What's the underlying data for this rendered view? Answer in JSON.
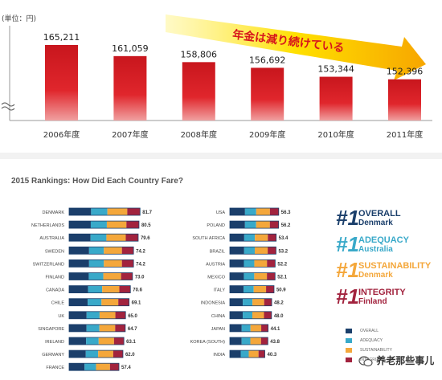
{
  "chart_data": [
    {
      "type": "bar",
      "unit_label": "(単位：円)",
      "categories": [
        "2006年度",
        "2007年度",
        "2008年度",
        "2009年度",
        "2010年度",
        "2011年度"
      ],
      "values": [
        165211,
        161059,
        158806,
        156692,
        153344,
        152396
      ],
      "value_labels": [
        "165,211",
        "161,059",
        "158,806",
        "156,692",
        "153,344",
        "152,396"
      ],
      "annotation": "年金は減り続けている",
      "axis_break": true,
      "colors": {
        "bar_top": "#c8161d",
        "bar_bottom": "#f0a0a0",
        "arrow_start": "#fff200",
        "arrow_end": "#f7a600"
      }
    },
    {
      "type": "bar",
      "orientation": "horizontal-stacked",
      "title": "2015 Rankings: How Did Each Country Fare?",
      "series": [
        {
          "name": "OVERALL",
          "color": "#1b3f6b"
        },
        {
          "name": "ADEQUACY",
          "color": "#39a9c9"
        },
        {
          "name": "SUSTAINABILITY",
          "color": "#f4a73b"
        },
        {
          "name": "INTEGRITY",
          "color": "#a2233e"
        }
      ],
      "left_column": [
        {
          "country": "DENMARK",
          "value": 81.7
        },
        {
          "country": "NETHERLANDS",
          "value": 80.5
        },
        {
          "country": "AUSTRALIA",
          "value": 79.6
        },
        {
          "country": "SWEDEN",
          "value": 74.2
        },
        {
          "country": "SWITZERLAND",
          "value": 74.2
        },
        {
          "country": "FINLAND",
          "value": 73.0
        },
        {
          "country": "CANADA",
          "value": 70.6
        },
        {
          "country": "CHILE",
          "value": 69.1
        },
        {
          "country": "UK",
          "value": 65.0
        },
        {
          "country": "SINGAPORE",
          "value": 64.7
        },
        {
          "country": "IRELAND",
          "value": 63.1
        },
        {
          "country": "GERMANY",
          "value": 62.0
        },
        {
          "country": "FRANCE",
          "value": 57.4
        }
      ],
      "right_column": [
        {
          "country": "USA",
          "value": 56.3
        },
        {
          "country": "POLAND",
          "value": 56.2
        },
        {
          "country": "SOUTH AFRICA",
          "value": 53.4
        },
        {
          "country": "BRAZIL",
          "value": 53.2
        },
        {
          "country": "AUSTRIA",
          "value": 52.2
        },
        {
          "country": "MEXICO",
          "value": 52.1
        },
        {
          "country": "ITALY",
          "value": 50.9
        },
        {
          "country": "INDONESIA",
          "value": 48.2
        },
        {
          "country": "CHINA",
          "value": 48.0
        },
        {
          "country": "JAPAN",
          "value": 44.1
        },
        {
          "country": "KOREA (SOUTH)",
          "value": 43.8
        },
        {
          "country": "INDIA",
          "value": 40.3
        }
      ],
      "badges": [
        {
          "num": "#1",
          "category": "OVERALL",
          "country": "Denmark",
          "color": "#1b3f6b"
        },
        {
          "num": "#1",
          "category": "ADEQUACY",
          "country": "Australia",
          "color": "#39a9c9"
        },
        {
          "num": "#1",
          "category": "SUSTAINABILITY",
          "country": "Denmark",
          "color": "#f4a73b"
        },
        {
          "num": "#1",
          "category": "INTEGRITY",
          "country": "Finland",
          "color": "#a2233e"
        }
      ]
    }
  ],
  "watermark": "养老那些事儿"
}
